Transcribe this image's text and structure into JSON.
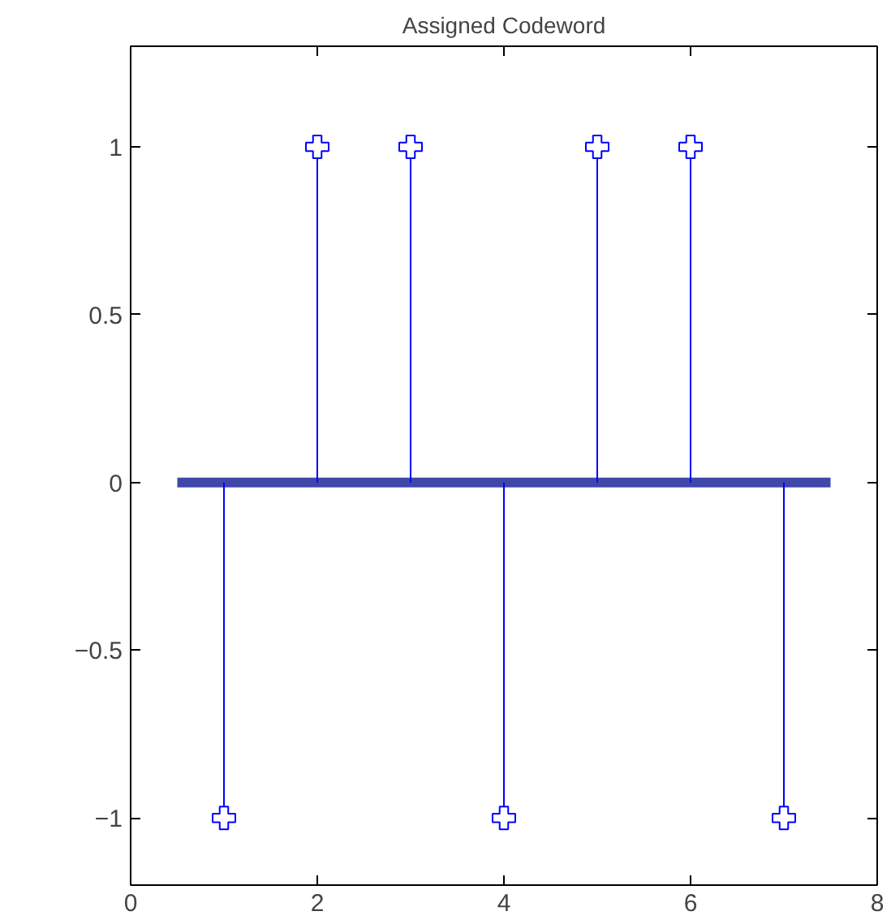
{
  "chart_data": {
    "type": "lollipop",
    "title": "Assigned Codeword",
    "x": [
      1,
      2,
      3,
      4,
      5,
      6,
      7
    ],
    "series": [
      {
        "color": "#0000ff",
        "values": [
          -1,
          1,
          1,
          -1,
          1,
          1,
          -1
        ]
      }
    ],
    "marker": "cross",
    "xlim": [
      0,
      8
    ],
    "xticks": [
      0,
      2,
      4,
      6,
      8
    ],
    "ylim": [
      -1.2,
      1.3
    ],
    "yticks": [
      -1,
      -0.5,
      0,
      0.5,
      1
    ],
    "ref_lines": [
      {
        "axis": "y",
        "value": 0,
        "color": "#3f48a8"
      }
    ],
    "grid": false
  }
}
